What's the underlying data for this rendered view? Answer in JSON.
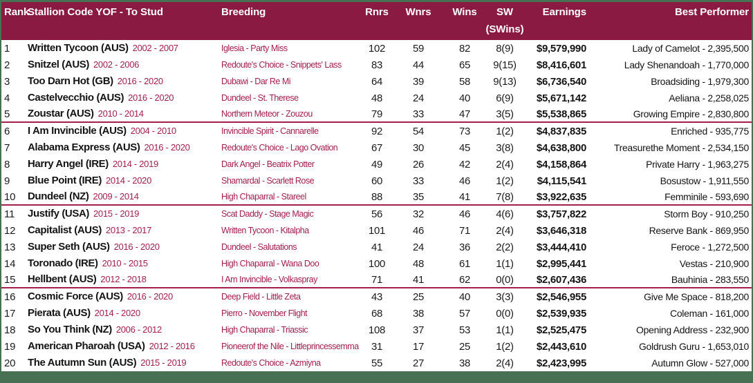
{
  "colors": {
    "frame_green": "#487052",
    "header_bg": "#8B1A43",
    "header_text": "#FFFFFF",
    "accent_crimson": "#A41E4C",
    "divider_line": "#A41E4C",
    "body_bg": "#FFFFFF",
    "body_text": "#1B1B1B"
  },
  "table": {
    "header": {
      "rank": "Rank",
      "stallion": "Stallion Code YOF - To Stud",
      "breeding": "Breeding",
      "rnrs": "Rnrs",
      "wnrs": "Wnrs",
      "wins": "Wins",
      "sw_line1": "SW",
      "sw_line2": "(SWins)",
      "earnings": "Earnings",
      "best": "Best Performer"
    },
    "divider_after_ranks": [
      5,
      10,
      15
    ],
    "rows": [
      {
        "rank": "1",
        "name": "Written Tycoon (AUS)",
        "years": "2002 - 2007",
        "breeding": "Iglesia - Party Miss",
        "rnrs": "102",
        "wnrs": "59",
        "wins": "82",
        "sw": "8(9)",
        "earnings": "$9,579,990",
        "best": "Lady of Camelot - 2,395,500"
      },
      {
        "rank": "2",
        "name": "Snitzel (AUS)",
        "years": "2002 - 2006",
        "breeding": "Redoute's Choice - Snippets' Lass",
        "rnrs": "83",
        "wnrs": "44",
        "wins": "65",
        "sw": "9(15)",
        "earnings": "$8,416,601",
        "best": "Lady Shenandoah - 1,770,000"
      },
      {
        "rank": "3",
        "name": "Too Darn Hot (GB)",
        "years": "2016 - 2020",
        "breeding": "Dubawi - Dar Re Mi",
        "rnrs": "64",
        "wnrs": "39",
        "wins": "58",
        "sw": "9(13)",
        "earnings": "$6,736,540",
        "best": "Broadsiding - 1,979,300"
      },
      {
        "rank": "4",
        "name": "Castelvecchio (AUS)",
        "years": "2016 - 2020",
        "breeding": "Dundeel - St. Therese",
        "rnrs": "48",
        "wnrs": "24",
        "wins": "40",
        "sw": "6(9)",
        "earnings": "$5,671,142",
        "best": "Aeliana - 2,258,025"
      },
      {
        "rank": "5",
        "name": "Zoustar (AUS)",
        "years": "2010 - 2014",
        "breeding": "Northern Meteor - Zouzou",
        "rnrs": "79",
        "wnrs": "33",
        "wins": "47",
        "sw": "3(5)",
        "earnings": "$5,538,865",
        "best": "Growing Empire - 2,830,800"
      },
      {
        "rank": "6",
        "name": "I Am Invincible (AUS)",
        "years": "2004 - 2010",
        "breeding": "Invincible Spirit - Cannarelle",
        "rnrs": "92",
        "wnrs": "54",
        "wins": "73",
        "sw": "1(2)",
        "earnings": "$4,837,835",
        "best": "Enriched - 935,775"
      },
      {
        "rank": "7",
        "name": "Alabama Express (AUS)",
        "years": "2016 - 2020",
        "breeding": "Redoute's Choice - Lago Ovation",
        "rnrs": "67",
        "wnrs": "30",
        "wins": "45",
        "sw": "3(8)",
        "earnings": "$4,638,800",
        "best": "Treasurethe Moment - 2,534,150"
      },
      {
        "rank": "8",
        "name": "Harry Angel (IRE)",
        "years": "2014 - 2019",
        "breeding": "Dark Angel - Beatrix Potter",
        "rnrs": "49",
        "wnrs": "26",
        "wins": "42",
        "sw": "2(4)",
        "earnings": "$4,158,864",
        "best": "Private Harry - 1,963,275"
      },
      {
        "rank": "9",
        "name": "Blue Point (IRE)",
        "years": "2014 - 2020",
        "breeding": "Shamardal - Scarlett Rose",
        "rnrs": "60",
        "wnrs": "33",
        "wins": "46",
        "sw": "1(2)",
        "earnings": "$4,115,541",
        "best": "Bosustow - 1,911,550"
      },
      {
        "rank": "10",
        "name": "Dundeel (NZ)",
        "years": "2009 - 2014",
        "breeding": "High Chaparral - Stareel",
        "rnrs": "88",
        "wnrs": "35",
        "wins": "41",
        "sw": "7(8)",
        "earnings": "$3,922,635",
        "best": "Femminile - 593,690"
      },
      {
        "rank": "11",
        "name": "Justify (USA)",
        "years": "2015 - 2019",
        "breeding": "Scat Daddy - Stage Magic",
        "rnrs": "56",
        "wnrs": "32",
        "wins": "46",
        "sw": "4(6)",
        "earnings": "$3,757,822",
        "best": "Storm Boy - 910,250"
      },
      {
        "rank": "12",
        "name": "Capitalist (AUS)",
        "years": "2013 - 2017",
        "breeding": "Written Tycoon - Kitalpha",
        "rnrs": "101",
        "wnrs": "46",
        "wins": "71",
        "sw": "2(4)",
        "earnings": "$3,646,318",
        "best": "Reserve Bank - 869,950"
      },
      {
        "rank": "13",
        "name": "Super Seth (AUS)",
        "years": "2016 - 2020",
        "breeding": "Dundeel - Salutations",
        "rnrs": "41",
        "wnrs": "24",
        "wins": "36",
        "sw": "2(2)",
        "earnings": "$3,444,410",
        "best": "Feroce - 1,272,500"
      },
      {
        "rank": "14",
        "name": "Toronado (IRE)",
        "years": "2010 - 2015",
        "breeding": "High Chaparral - Wana Doo",
        "rnrs": "100",
        "wnrs": "48",
        "wins": "61",
        "sw": "1(1)",
        "earnings": "$2,995,441",
        "best": "Vestas - 210,900"
      },
      {
        "rank": "15",
        "name": "Hellbent (AUS)",
        "years": "2012 - 2018",
        "breeding": "I Am Invincible - Volkaspray",
        "rnrs": "71",
        "wnrs": "41",
        "wins": "62",
        "sw": "0(0)",
        "earnings": "$2,607,436",
        "best": "Bauhinia - 283,550"
      },
      {
        "rank": "16",
        "name": "Cosmic Force (AUS)",
        "years": "2016 - 2020",
        "breeding": "Deep Field - Little Zeta",
        "rnrs": "43",
        "wnrs": "25",
        "wins": "40",
        "sw": "3(3)",
        "earnings": "$2,546,955",
        "best": "Give Me Space - 818,200"
      },
      {
        "rank": "17",
        "name": "Pierata (AUS)",
        "years": "2014 - 2020",
        "breeding": "Pierro - November Flight",
        "rnrs": "68",
        "wnrs": "38",
        "wins": "57",
        "sw": "0(0)",
        "earnings": "$2,539,935",
        "best": "Coleman - 161,000"
      },
      {
        "rank": "18",
        "name": "So You Think (NZ)",
        "years": "2006 - 2012",
        "breeding": "High Chaparral - Triassic",
        "rnrs": "108",
        "wnrs": "37",
        "wins": "53",
        "sw": "1(1)",
        "earnings": "$2,525,475",
        "best": "Opening Address - 232,900"
      },
      {
        "rank": "19",
        "name": "American Pharoah (USA)",
        "years": "2012 - 2016",
        "breeding": "Pioneerof the Nile - Littleprincessemma",
        "rnrs": "31",
        "wnrs": "17",
        "wins": "25",
        "sw": "1(2)",
        "earnings": "$2,443,610",
        "best": "Goldrush Guru - 1,653,010"
      },
      {
        "rank": "20",
        "name": "The Autumn Sun (AUS)",
        "years": "2015 - 2019",
        "breeding": "Redoute's Choice - Azmiyna",
        "rnrs": "55",
        "wnrs": "27",
        "wins": "38",
        "sw": "2(4)",
        "earnings": "$2,423,995",
        "best": "Autumn Glow - 527,000"
      }
    ]
  }
}
